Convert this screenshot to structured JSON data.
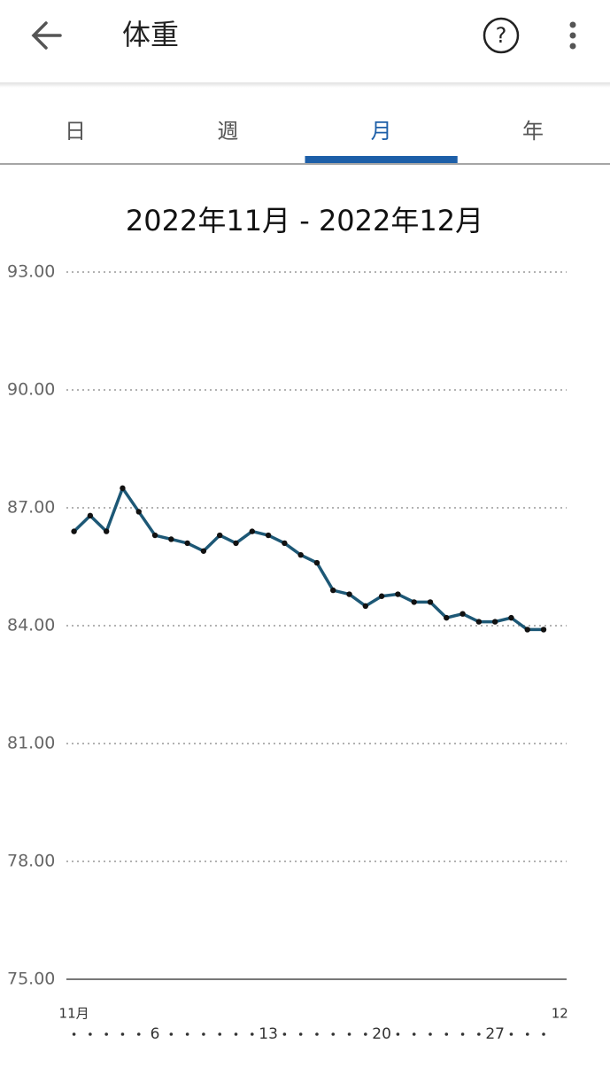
{
  "header": {
    "title": "体重"
  },
  "tabs": [
    "日",
    "週",
    "月",
    "年"
  ],
  "selected_tab": 2,
  "chart_data": {
    "type": "line",
    "title": "2022年11月 - 2022年12月",
    "x": [
      1,
      2,
      3,
      4,
      5,
      6,
      7,
      8,
      9,
      10,
      11,
      12,
      13,
      14,
      15,
      16,
      17,
      18,
      19,
      20,
      21,
      22,
      23,
      24,
      25,
      26,
      27,
      28,
      29,
      30
    ],
    "series": [
      {
        "color": "#1d5876",
        "values": [
          86.4,
          86.8,
          86.4,
          87.5,
          86.9,
          86.3,
          86.2,
          86.1,
          85.9,
          86.3,
          86.1,
          86.4,
          86.3,
          86.1,
          85.8,
          85.6,
          84.9,
          84.8,
          84.5,
          84.75,
          84.8,
          84.6,
          84.6,
          84.2,
          84.3,
          84.1,
          84.1,
          84.2,
          83.9,
          83.9
        ]
      }
    ],
    "xlim": [
      0.53,
      31.42
    ],
    "xticks": [
      6,
      13,
      20,
      27
    ],
    "month_labels": [
      {
        "value": 1,
        "label": "11月"
      },
      {
        "value": 31,
        "label": "12"
      }
    ],
    "ylim": [
      75,
      93
    ],
    "yticks": [
      {
        "value": 75,
        "label": "75.00"
      },
      {
        "value": 78,
        "label": "78.00"
      },
      {
        "value": 81,
        "label": "81.00"
      },
      {
        "value": 84,
        "label": "84.00"
      },
      {
        "value": 87,
        "label": "87.00"
      },
      {
        "value": 90,
        "label": "90.00"
      },
      {
        "value": 93,
        "label": "93.00"
      }
    ],
    "grid": true
  }
}
